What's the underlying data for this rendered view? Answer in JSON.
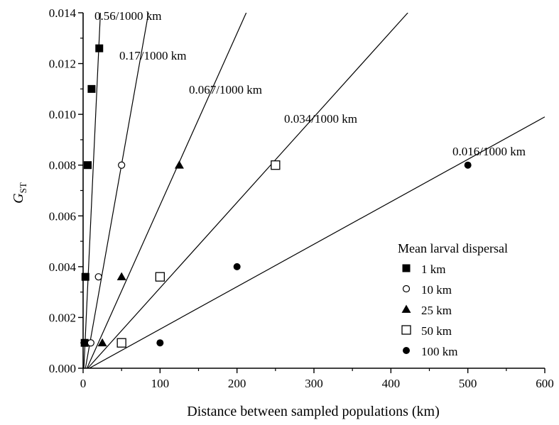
{
  "chart_data": {
    "type": "scatter",
    "xlabel": "Distance between sampled populations (km)",
    "ylabel": "G",
    "ylabel_subscript": "ST",
    "xlim": [
      0,
      600
    ],
    "ylim": [
      0,
      0.014
    ],
    "xticks": [
      0,
      100,
      200,
      300,
      400,
      500,
      600
    ],
    "yticks": [
      0.0,
      0.002,
      0.004,
      0.006,
      0.008,
      0.01,
      0.012,
      0.014
    ],
    "ytick_labels": [
      "0.000",
      "0.002",
      "0.004",
      "0.006",
      "0.008",
      "0.010",
      "0.012",
      "0.014"
    ],
    "grid": false,
    "legend": {
      "title": "Mean larval dispersal",
      "placement": "lower-right"
    },
    "series": [
      {
        "name": "1 km",
        "marker": "square-filled",
        "points": [
          [
            2,
            0.001
          ],
          [
            3,
            0.0036
          ],
          [
            6,
            0.008
          ],
          [
            11,
            0.011
          ],
          [
            21,
            0.0126
          ]
        ]
      },
      {
        "name": "10 km",
        "marker": "circle-open",
        "points": [
          [
            10,
            0.001
          ],
          [
            20,
            0.0036
          ],
          [
            50,
            0.008
          ]
        ]
      },
      {
        "name": "25 km",
        "marker": "triangle-filled",
        "points": [
          [
            25,
            0.001
          ],
          [
            50,
            0.0036
          ],
          [
            125,
            0.008
          ]
        ]
      },
      {
        "name": "50 km",
        "marker": "square-open",
        "points": [
          [
            50,
            0.001
          ],
          [
            100,
            0.0036
          ],
          [
            250,
            0.008
          ]
        ]
      },
      {
        "name": "100 km",
        "marker": "circle-filled",
        "points": [
          [
            100,
            0.001
          ],
          [
            200,
            0.004
          ],
          [
            500,
            0.008
          ]
        ]
      }
    ],
    "fit_lines": [
      {
        "label": "0.56/1000 km",
        "x0": 1,
        "x1": 22.5
      },
      {
        "label": "0.17/1000 km",
        "x0": 3,
        "x1": 85
      },
      {
        "label": "0.067/1000 km",
        "x0": 5,
        "x1": 212
      },
      {
        "label": "0.034/1000 km",
        "x0": 6,
        "x1": 422
      },
      {
        "label": "0.016/1000 km",
        "x0": 8,
        "x1": 600,
        "y1": 0.0099
      }
    ]
  }
}
